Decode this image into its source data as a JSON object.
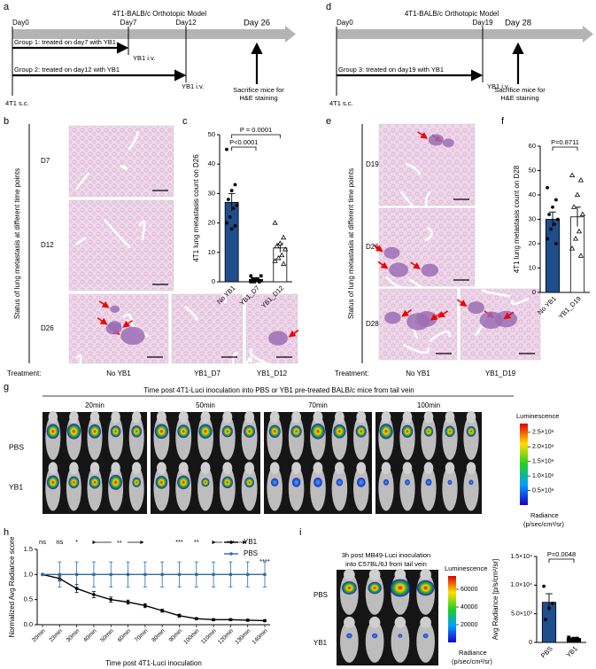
{
  "panel_labels": [
    "a",
    "b",
    "c",
    "d",
    "e",
    "f",
    "g",
    "h",
    "i"
  ],
  "timeline_a": {
    "title": "4T1-BALB/c Orthotopic Model",
    "days": [
      "Day0",
      "Day7",
      "Day12",
      "Day 26"
    ],
    "groups": [
      "Group 1: treated on day7 with YB1",
      "Group 2: treated on day12 with YB1"
    ],
    "iv": [
      "YB1 i.v.",
      "YB1 i.v."
    ],
    "injection": "4T1 s.c.",
    "endpoint": [
      "Sacrifice mice for",
      "H&E staining"
    ]
  },
  "timeline_d": {
    "title": "4T1-BALB/c Orthotopic Model",
    "days": [
      "Day0",
      "Day19",
      "Day 28"
    ],
    "groups": [
      "Group 3: treated on day19 with YB1"
    ],
    "iv": [
      "YB1 i.v."
    ],
    "injection": "4T1 s.c.",
    "endpoint": [
      "Sacrifice mice for",
      "H&E staining"
    ]
  },
  "histology_b": {
    "ylabel": "Status of lung metastasis at different time points",
    "rows": [
      "D7",
      "D12",
      "D26"
    ],
    "treatment_label": "Treatment:",
    "treatments": [
      "No YB1",
      "YB1_D7",
      "YB1_D12"
    ]
  },
  "histology_e": {
    "ylabel": "Status of lung metastasis at different time points",
    "rows": [
      "D19",
      "D26",
      "D28"
    ],
    "treatment_label": "Treatment:",
    "treatments": [
      "No YB1",
      "YB1_D19"
    ]
  },
  "imaging_g": {
    "title": "Time post 4T1-Luci inoculation into PBS or YB1 pre-treated BALB/c mice from tail vein",
    "times": [
      "20min",
      "50min",
      "70min",
      "100min"
    ],
    "groups": [
      "PBS",
      "YB1"
    ],
    "colorbar": {
      "title": "Luminescence",
      "lim": [
        0,
        2800000
      ],
      "ticks": [
        {
          "value": 500000,
          "label": "0.5×10⁶"
        },
        {
          "value": 1000000,
          "label": "1.0×10⁶"
        },
        {
          "value": 1500000,
          "label": "1.5×10⁶"
        },
        {
          "value": 2000000,
          "label": "2.0×10⁶"
        },
        {
          "value": 2500000,
          "label": "2.5×10⁶"
        }
      ],
      "unit": [
        "Radiance",
        "(p/sec/cm²/sr)"
      ]
    }
  },
  "imaging_i": {
    "title": [
      "3h post MB49-Luci inoculation",
      "into C57BL/6J from tail vein"
    ],
    "groups": [
      "PBS",
      "YB1"
    ],
    "colorbar": {
      "title": "Luminescence",
      "lim": [
        0,
        75000
      ],
      "ticks": [
        20000,
        40000,
        60000
      ],
      "unit": [
        "Radiance",
        "(p/sec/cm²/sr)"
      ]
    }
  },
  "chart_data": [
    {
      "type": "bar",
      "ylabel": "4T1 lung metastasis count on D26",
      "categories": [
        "No YB1",
        "YB1_D7",
        "YB1_D12"
      ],
      "values": [
        27,
        0.8,
        11.5
      ],
      "errors": [
        3,
        0.3,
        1.5
      ],
      "points": [
        [
          45,
          33,
          31,
          28,
          26,
          25,
          22,
          20,
          19,
          18
        ],
        [
          0,
          0,
          1,
          1,
          2,
          1,
          0,
          2
        ],
        [
          20,
          15,
          13,
          12,
          11,
          9,
          8,
          7,
          6
        ]
      ],
      "colors": [
        "#1f4e8c",
        "#000000",
        "#ffffff"
      ],
      "ylim": [
        0,
        50
      ],
      "yticks": [
        0,
        10,
        20,
        30,
        40,
        50
      ],
      "annotations": [
        "P = 0.0001",
        "P<0.0001"
      ]
    },
    {
      "type": "bar",
      "ylabel": "4T1 lung metastasis count on D28",
      "categories": [
        "No YB1",
        "YB1_D19"
      ],
      "values": [
        30,
        31
      ],
      "errors": [
        3,
        4
      ],
      "points": [
        [
          43,
          38,
          35,
          32,
          30,
          28,
          26,
          22,
          20
        ],
        [
          48,
          46,
          40,
          35,
          32,
          25,
          22,
          18,
          15
        ]
      ],
      "colors": [
        "#1f4e8c",
        "#ffffff"
      ],
      "ylim": [
        0,
        60
      ],
      "yticks": [
        0,
        10,
        20,
        30,
        40,
        50,
        60
      ],
      "annotations": [
        "P=0.8711"
      ]
    },
    {
      "type": "line",
      "xlabel": "Time post 4T1-Luci inoculation",
      "ylabel": "Normalized Avg Radiance score",
      "categories": [
        "20min",
        "23min",
        "30min",
        "40min",
        "50min",
        "60min",
        "70min",
        "80min",
        "90min",
        "100min",
        "110min",
        "120min",
        "130min",
        "140min"
      ],
      "series": [
        {
          "name": "YB1",
          "color": "#000000",
          "values": [
            1.0,
            0.92,
            0.72,
            0.6,
            0.5,
            0.45,
            0.38,
            0.28,
            0.18,
            0.12,
            0.1,
            0.1,
            0.09,
            0.08
          ],
          "errors": [
            0,
            0.05,
            0.08,
            0.06,
            0.05,
            0.04,
            0.04,
            0.03,
            0.03,
            0.02,
            0.02,
            0.02,
            0.02,
            0.02
          ]
        },
        {
          "name": "PBS",
          "color": "#2e6aa8",
          "values": [
            1.0,
            1.0,
            1.0,
            1.0,
            1.0,
            1.0,
            1.0,
            1.0,
            1.0,
            1.0,
            1.0,
            1.0,
            1.0,
            1.0
          ],
          "errors": [
            0,
            0.25,
            0.25,
            0.25,
            0.25,
            0.25,
            0.25,
            0.25,
            0.25,
            0.25,
            0.25,
            0.25,
            0.25,
            0.25
          ]
        }
      ],
      "ylim": [
        0,
        1.5
      ],
      "yticks": [
        {
          "value": 0,
          "label": "0.0"
        },
        {
          "value": 0.5,
          "label": "0.5"
        },
        {
          "value": 1,
          "label": "1.0"
        },
        {
          "value": 1.5,
          "label": "1.5"
        }
      ],
      "annotations": [
        "ns",
        "ns",
        "*",
        "**",
        "***",
        "**",
        "***",
        "****"
      ]
    },
    {
      "type": "bar",
      "ylabel": "Avg Radiance [p/s/cm²/sr]",
      "categories": [
        "PBS",
        "YB1"
      ],
      "values": [
        7000,
        700
      ],
      "errors": [
        1500,
        200
      ],
      "points": [
        [
          9800,
          6800,
          6000,
          4000
        ],
        [
          900,
          700,
          600,
          500
        ]
      ],
      "colors": [
        "#1f4e8c",
        "#000000"
      ],
      "ylim": [
        0,
        15000
      ],
      "yticks": [
        0,
        {
          "value": 5000,
          "label": "5.0×10³"
        },
        {
          "value": 10000,
          "label": "1.0×10⁴"
        },
        {
          "value": 15000,
          "label": "1.5×10⁴"
        }
      ],
      "annotations": [
        "P=0.0048"
      ]
    }
  ]
}
